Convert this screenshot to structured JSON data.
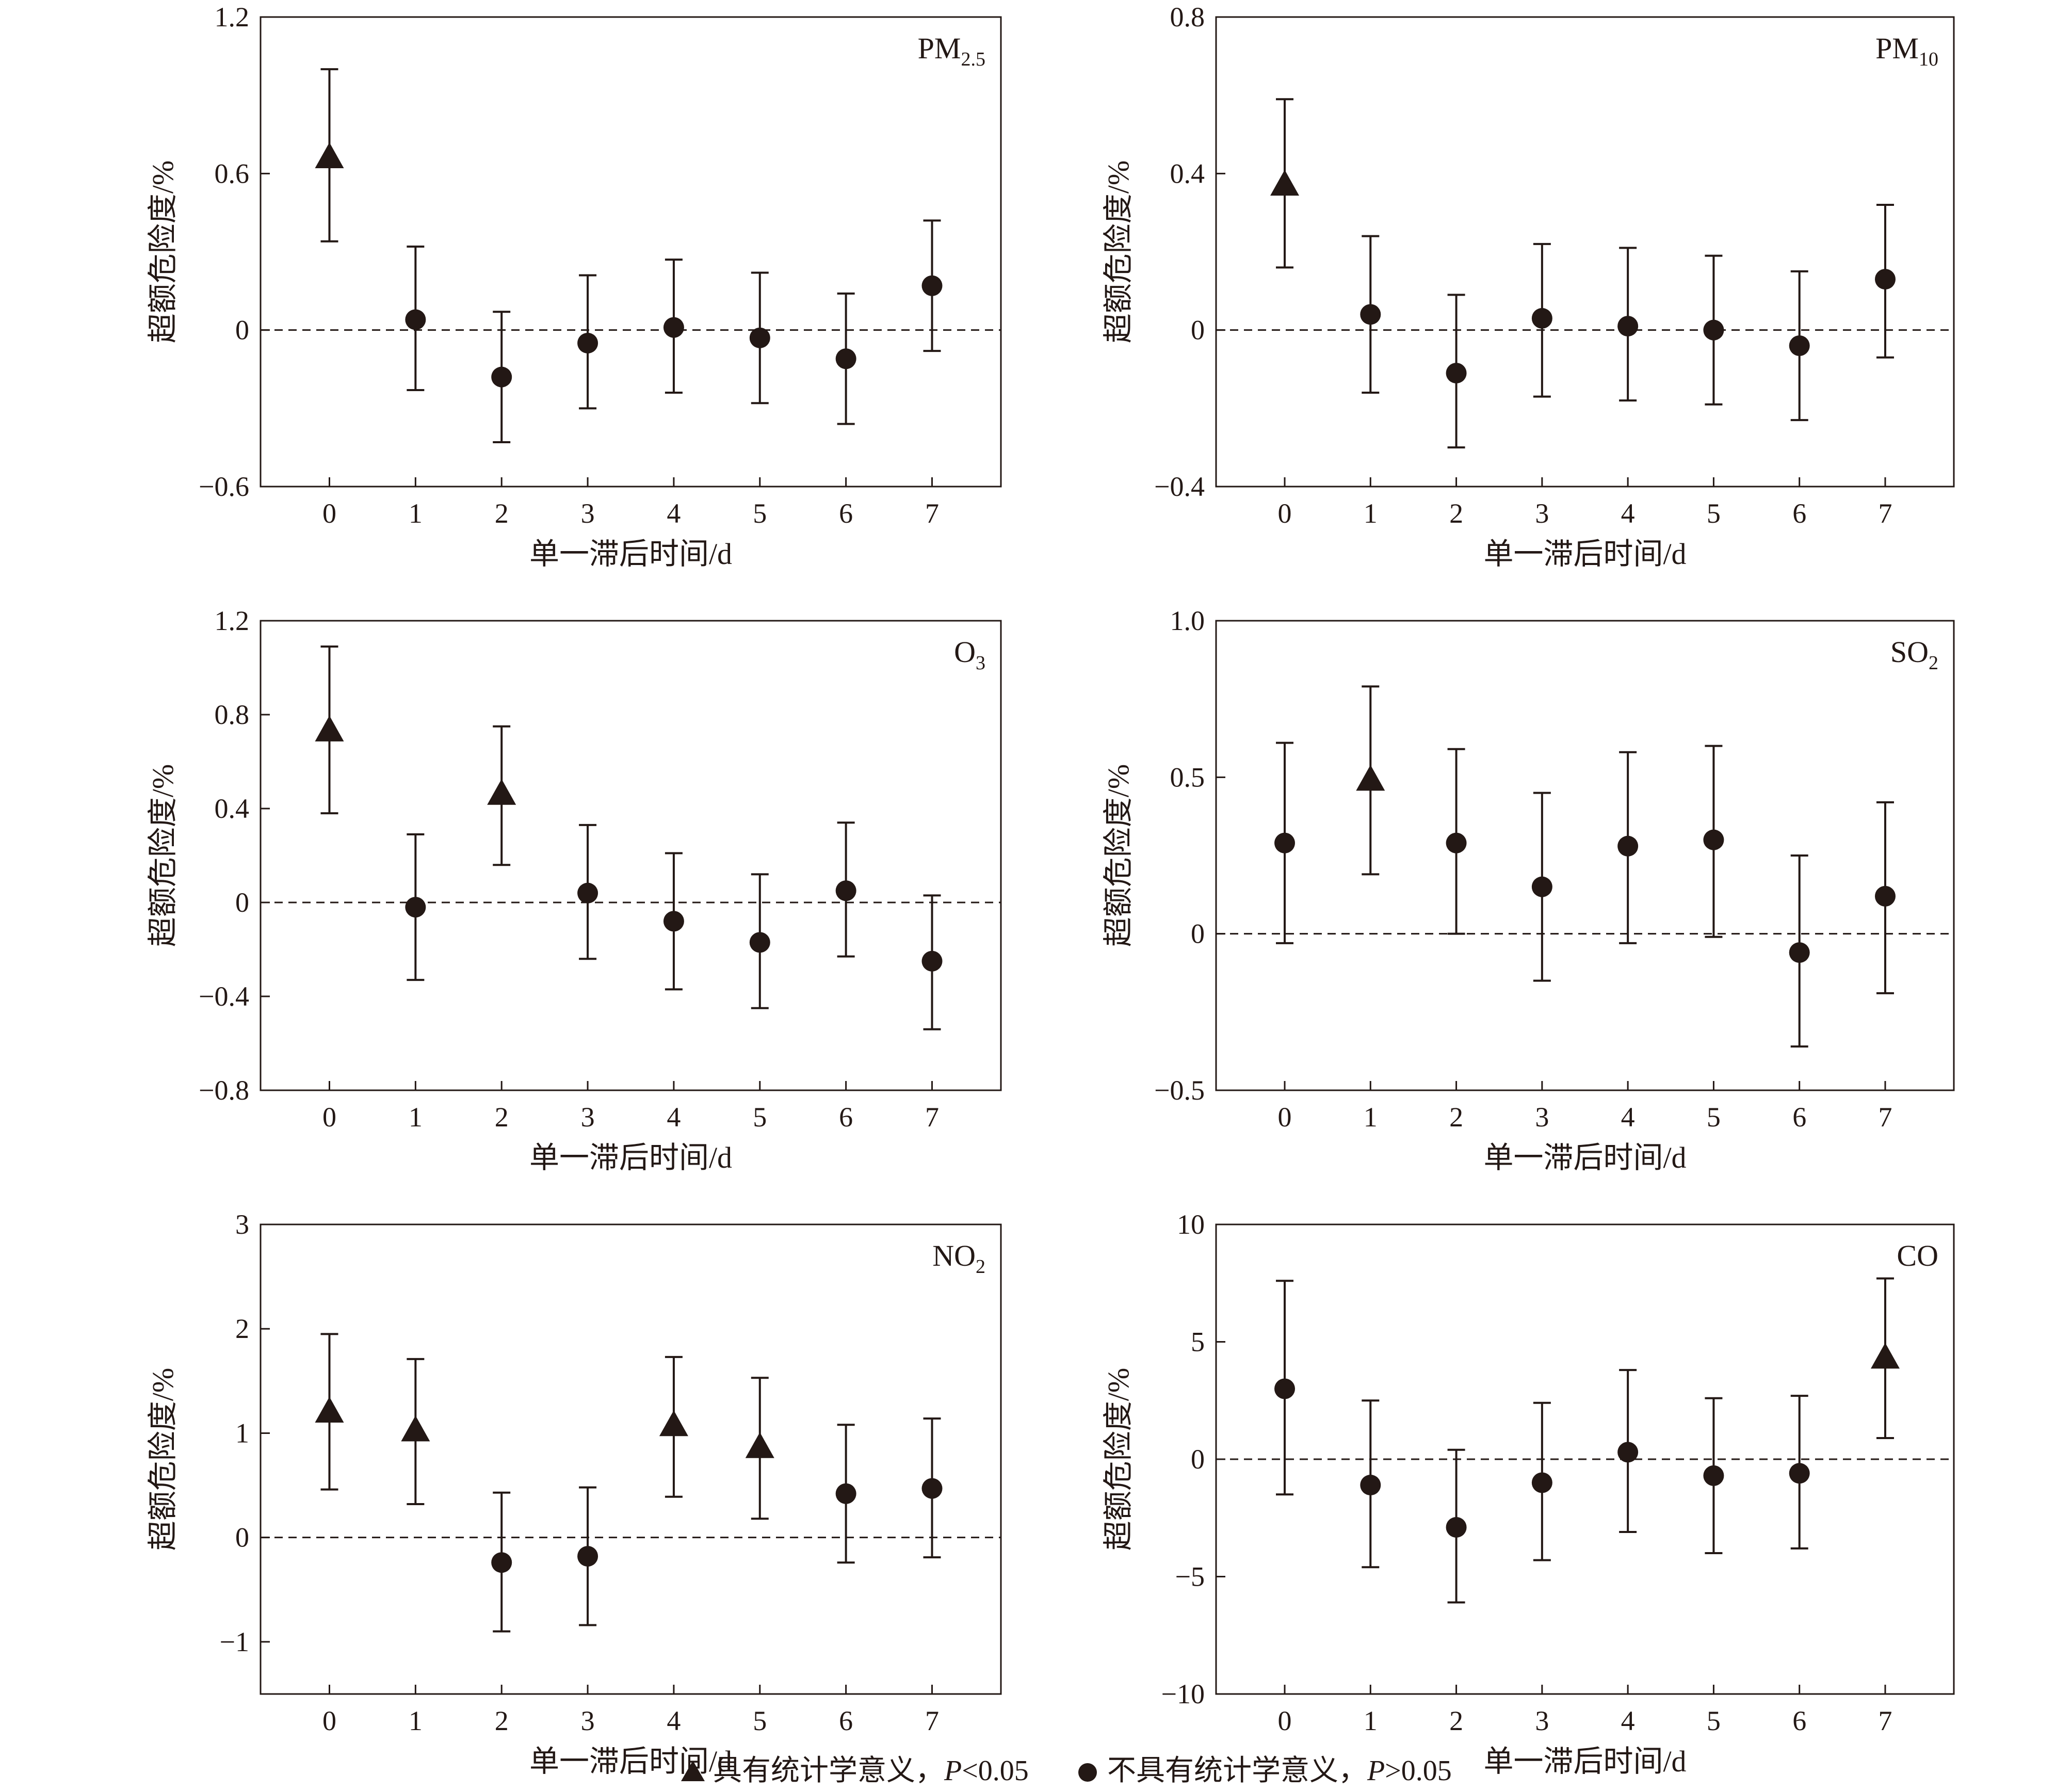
{
  "legend": {
    "significant_prefix": "具有统计学意义，",
    "significant_p": "P",
    "significant_thresh": "<0.05",
    "nonsignificant_prefix": "不具有统计学意义，",
    "nonsignificant_p": "P",
    "nonsignificant_thresh": ">0.05"
  },
  "chart_data": [
    {
      "type": "scatter",
      "label_main": "PM",
      "label_sub": "2.5",
      "xlabel": "单一滞后时间/d",
      "ylabel": "超额危险度/%",
      "x": [
        0,
        1,
        2,
        3,
        4,
        5,
        6,
        7
      ],
      "xticks": [
        "0",
        "1",
        "2",
        "3",
        "4",
        "5",
        "6",
        "7"
      ],
      "ylim": [
        -0.6,
        1.2
      ],
      "yticks": [
        "−0.6",
        "0",
        "0.6",
        "1.2"
      ],
      "ytick_values": [
        -0.6,
        0,
        0.6,
        1.2
      ],
      "values": [
        0.66,
        0.04,
        -0.18,
        -0.05,
        0.01,
        -0.03,
        -0.11,
        0.17
      ],
      "lower": [
        0.34,
        -0.23,
        -0.43,
        -0.3,
        -0.24,
        -0.28,
        -0.36,
        -0.08
      ],
      "upper": [
        1.0,
        0.32,
        0.07,
        0.21,
        0.27,
        0.22,
        0.14,
        0.42
      ],
      "significant": [
        true,
        false,
        false,
        false,
        false,
        false,
        false,
        false
      ]
    },
    {
      "type": "scatter",
      "label_main": "PM",
      "label_sub": "10",
      "xlabel": "单一滞后时间/d",
      "ylabel": "超额危险度/%",
      "x": [
        0,
        1,
        2,
        3,
        4,
        5,
        6,
        7
      ],
      "xticks": [
        "0",
        "1",
        "2",
        "3",
        "4",
        "5",
        "6",
        "7"
      ],
      "ylim": [
        -0.4,
        0.8
      ],
      "yticks": [
        "−0.4",
        "0",
        "0.4",
        "0.8"
      ],
      "ytick_values": [
        -0.4,
        0,
        0.4,
        0.8
      ],
      "values": [
        0.37,
        0.04,
        -0.11,
        0.03,
        0.01,
        0.0,
        -0.04,
        0.13
      ],
      "lower": [
        0.16,
        -0.16,
        -0.3,
        -0.17,
        -0.18,
        -0.19,
        -0.23,
        -0.07
      ],
      "upper": [
        0.59,
        0.24,
        0.09,
        0.22,
        0.21,
        0.19,
        0.15,
        0.32
      ],
      "significant": [
        true,
        false,
        false,
        false,
        false,
        false,
        false,
        false
      ]
    },
    {
      "type": "scatter",
      "label_main": "O",
      "label_sub": "3",
      "xlabel": "单一滞后时间/d",
      "ylabel": "超额危险度/%",
      "x": [
        0,
        1,
        2,
        3,
        4,
        5,
        6,
        7
      ],
      "xticks": [
        "0",
        "1",
        "2",
        "3",
        "4",
        "5",
        "6",
        "7"
      ],
      "ylim": [
        -0.8,
        1.2
      ],
      "yticks": [
        "−0.8",
        "−0.4",
        "0",
        "0.4",
        "0.8",
        "1.2"
      ],
      "ytick_values": [
        -0.8,
        -0.4,
        0,
        0.4,
        0.8,
        1.2
      ],
      "values": [
        0.73,
        -0.02,
        0.46,
        0.04,
        -0.08,
        -0.17,
        0.05,
        -0.25
      ],
      "lower": [
        0.38,
        -0.33,
        0.16,
        -0.24,
        -0.37,
        -0.45,
        -0.23,
        -0.54
      ],
      "upper": [
        1.09,
        0.29,
        0.75,
        0.33,
        0.21,
        0.12,
        0.34,
        0.03
      ],
      "significant": [
        true,
        false,
        true,
        false,
        false,
        false,
        false,
        false
      ]
    },
    {
      "type": "scatter",
      "label_main": "SO",
      "label_sub": "2",
      "xlabel": "单一滞后时间/d",
      "ylabel": "超额危险度/%",
      "x": [
        0,
        1,
        2,
        3,
        4,
        5,
        6,
        7
      ],
      "xticks": [
        "0",
        "1",
        "2",
        "3",
        "4",
        "5",
        "6",
        "7"
      ],
      "ylim": [
        -0.5,
        1.0
      ],
      "yticks": [
        "−0.5",
        "0",
        "0.5",
        "1.0"
      ],
      "ytick_values": [
        -0.5,
        0,
        0.5,
        1.0
      ],
      "values": [
        0.29,
        0.49,
        0.29,
        0.15,
        0.28,
        0.3,
        -0.06,
        0.12
      ],
      "lower": [
        -0.03,
        0.19,
        0.0,
        -0.15,
        -0.03,
        -0.01,
        -0.36,
        -0.19
      ],
      "upper": [
        0.61,
        0.79,
        0.59,
        0.45,
        0.58,
        0.6,
        0.25,
        0.42
      ],
      "significant": [
        false,
        true,
        false,
        false,
        false,
        false,
        false,
        false
      ]
    },
    {
      "type": "scatter",
      "label_main": "NO",
      "label_sub": "2",
      "xlabel": "单一滞后时间/d",
      "ylabel": "超额危险度/%",
      "x": [
        0,
        1,
        2,
        3,
        4,
        5,
        6,
        7
      ],
      "xticks": [
        "0",
        "1",
        "2",
        "3",
        "4",
        "5",
        "6",
        "7"
      ],
      "ylim": [
        -1.5,
        3
      ],
      "yticks": [
        "−1",
        "0",
        "1",
        "2",
        "3"
      ],
      "ytick_values": [
        -1,
        0,
        1,
        2,
        3
      ],
      "values": [
        1.2,
        1.02,
        -0.24,
        -0.18,
        1.07,
        0.86,
        0.42,
        0.47
      ],
      "lower": [
        0.46,
        0.32,
        -0.9,
        -0.84,
        0.39,
        0.18,
        -0.24,
        -0.19
      ],
      "upper": [
        1.95,
        1.71,
        0.43,
        0.48,
        1.73,
        1.53,
        1.08,
        1.14
      ],
      "significant": [
        true,
        true,
        false,
        false,
        true,
        true,
        false,
        false
      ]
    },
    {
      "type": "scatter",
      "label_main": "CO",
      "label_sub": "",
      "xlabel": "单一滞后时间/d",
      "ylabel": "超额危险度/%",
      "x": [
        0,
        1,
        2,
        3,
        4,
        5,
        6,
        7
      ],
      "xticks": [
        "0",
        "1",
        "2",
        "3",
        "4",
        "5",
        "6",
        "7"
      ],
      "ylim": [
        -10,
        10
      ],
      "yticks": [
        "−10",
        "−5",
        "0",
        "5",
        "10"
      ],
      "ytick_values": [
        -10,
        -5,
        0,
        5,
        10
      ],
      "values": [
        3.0,
        -1.1,
        -2.9,
        -1.0,
        0.3,
        -0.7,
        -0.6,
        4.3
      ],
      "lower": [
        -1.5,
        -4.6,
        -6.1,
        -4.3,
        -3.1,
        -4.0,
        -3.8,
        0.9
      ],
      "upper": [
        7.6,
        2.5,
        0.4,
        2.4,
        3.8,
        2.6,
        2.7,
        7.7
      ],
      "significant": [
        false,
        false,
        false,
        false,
        false,
        false,
        false,
        true
      ]
    }
  ]
}
